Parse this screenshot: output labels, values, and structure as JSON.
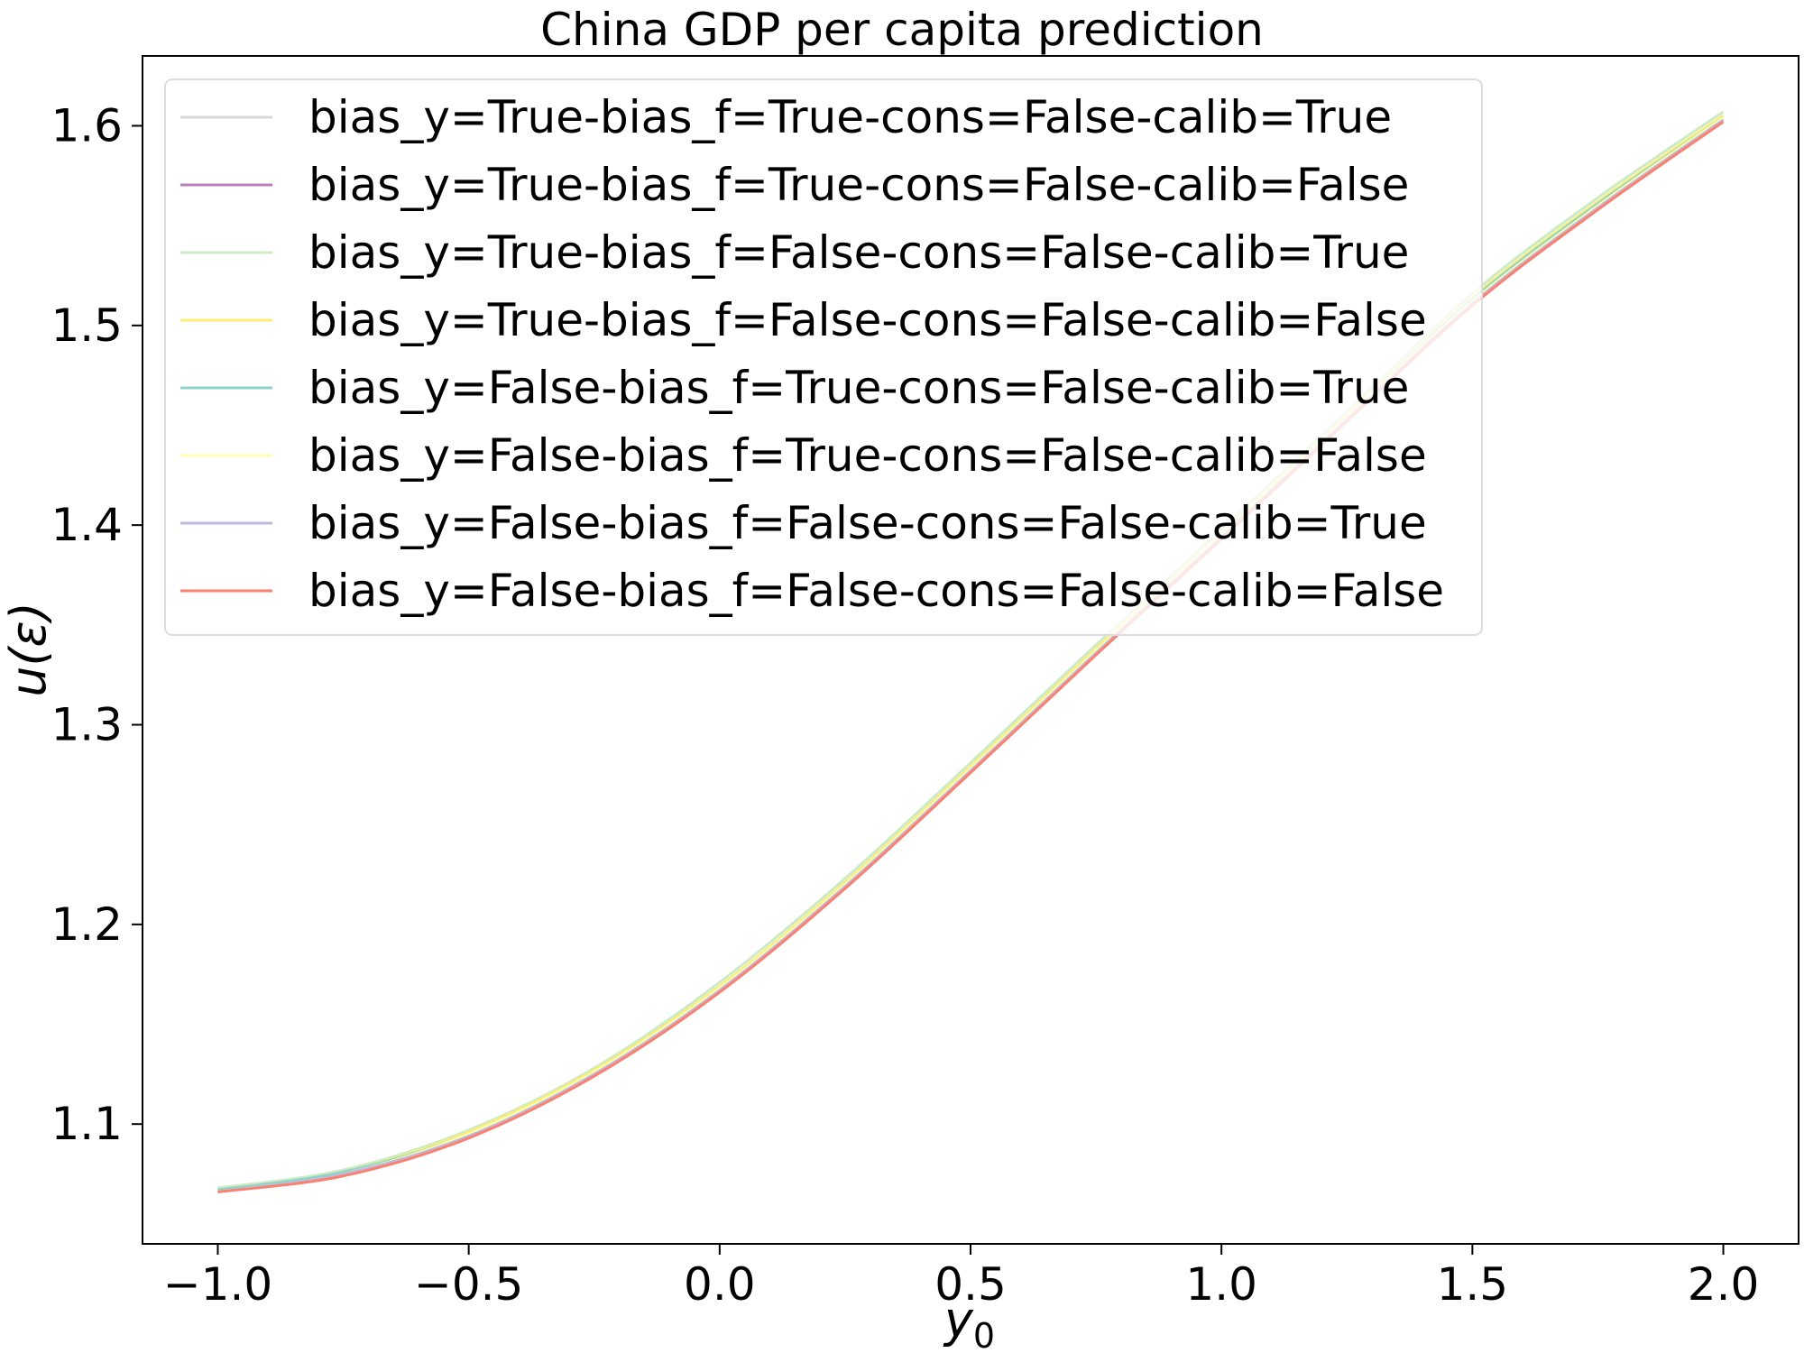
{
  "chart_data": {
    "type": "line",
    "title": "China GDP per capita prediction",
    "xlabel": "y",
    "xlabel_sub": "0",
    "ylabel": "u(ε)",
    "xlim": [
      -1.15,
      2.15
    ],
    "ylim": [
      1.04,
      1.635
    ],
    "xticks": [
      -1.0,
      -0.5,
      0.0,
      0.5,
      1.0,
      1.5,
      2.0
    ],
    "xtick_labels": [
      "−1.0",
      "−0.5",
      "0.0",
      "0.5",
      "1.0",
      "1.5",
      "2.0"
    ],
    "yticks": [
      1.1,
      1.2,
      1.3,
      1.4,
      1.5,
      1.6
    ],
    "ytick_labels": [
      "1.1",
      "1.2",
      "1.3",
      "1.4",
      "1.5",
      "1.6"
    ],
    "grid": false,
    "legend_position": "top-left",
    "x": [
      -1.0,
      -0.75,
      -0.5,
      -0.25,
      0.0,
      0.25,
      0.5,
      0.75,
      1.0,
      1.25,
      1.5,
      1.75,
      2.0
    ],
    "series": [
      {
        "name": "bias_y=True-bias_f=True-cons=False-calib=True",
        "color": "#d9d9d9",
        "values": [
          1.067,
          1.076,
          1.096,
          1.127,
          1.169,
          1.221,
          1.279,
          1.338,
          1.396,
          1.455,
          1.514,
          1.562,
          1.605
        ]
      },
      {
        "name": "bias_y=True-bias_f=True-cons=False-calib=False",
        "color": "#bc80bd",
        "values": [
          1.066,
          1.075,
          1.094,
          1.125,
          1.167,
          1.219,
          1.277,
          1.336,
          1.394,
          1.453,
          1.511,
          1.559,
          1.603
        ]
      },
      {
        "name": "bias_y=True-bias_f=False-cons=False-calib=True",
        "color": "#ccebc5",
        "values": [
          1.068,
          1.077,
          1.097,
          1.128,
          1.171,
          1.223,
          1.281,
          1.34,
          1.398,
          1.457,
          1.516,
          1.564,
          1.607
        ]
      },
      {
        "name": "bias_y=True-bias_f=False-cons=False-calib=False",
        "color": "#ffed6f",
        "values": [
          1.067,
          1.076,
          1.096,
          1.127,
          1.169,
          1.221,
          1.279,
          1.338,
          1.396,
          1.455,
          1.514,
          1.562,
          1.605
        ]
      },
      {
        "name": "bias_y=False-bias_f=True-cons=False-calib=True",
        "color": "#8dd3c7",
        "values": [
          1.067,
          1.076,
          1.095,
          1.126,
          1.168,
          1.22,
          1.278,
          1.337,
          1.395,
          1.454,
          1.513,
          1.561,
          1.604
        ]
      },
      {
        "name": "bias_y=False-bias_f=True-cons=False-calib=False",
        "color": "#ffffb3",
        "values": [
          1.066,
          1.075,
          1.095,
          1.126,
          1.168,
          1.22,
          1.278,
          1.337,
          1.395,
          1.454,
          1.512,
          1.56,
          1.604
        ]
      },
      {
        "name": "bias_y=False-bias_f=False-cons=False-calib=True",
        "color": "#bebada",
        "values": [
          1.066,
          1.075,
          1.094,
          1.125,
          1.167,
          1.219,
          1.277,
          1.336,
          1.394,
          1.453,
          1.511,
          1.559,
          1.603
        ]
      },
      {
        "name": "bias_y=False-bias_f=False-cons=False-calib=False",
        "color": "#fb8072",
        "values": [
          1.066,
          1.074,
          1.093,
          1.124,
          1.166,
          1.218,
          1.276,
          1.335,
          1.393,
          1.452,
          1.51,
          1.558,
          1.602
        ]
      }
    ]
  }
}
